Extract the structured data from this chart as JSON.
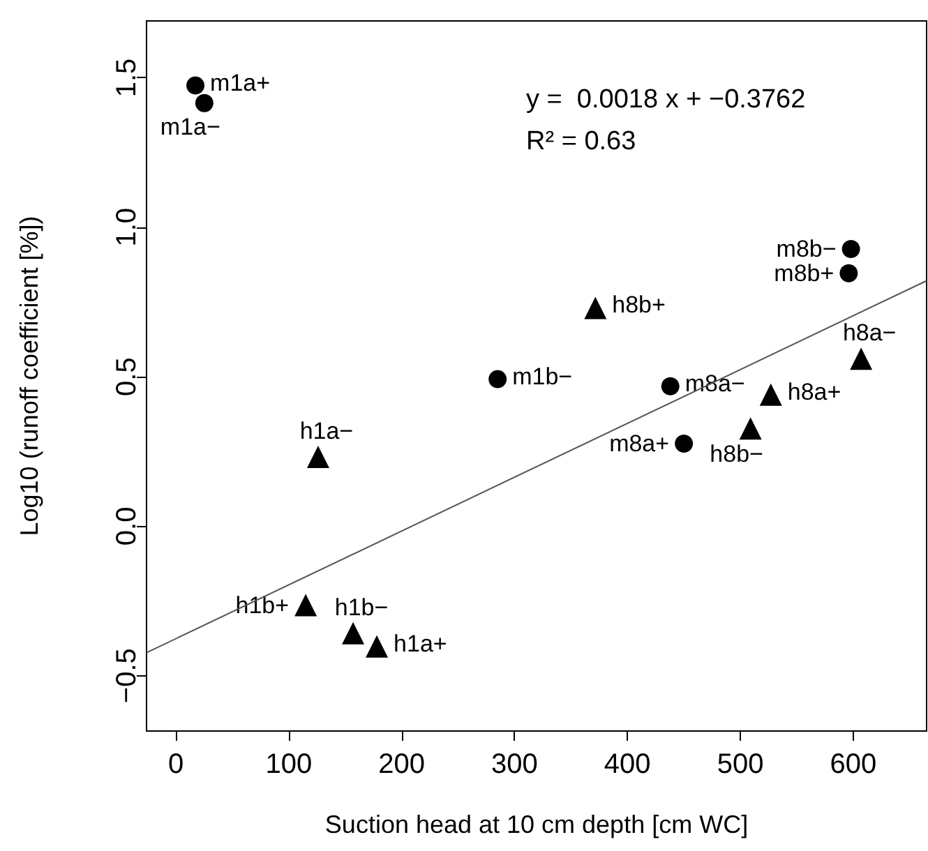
{
  "chart_data": {
    "type": "scatter",
    "xlabel": "Suction head at 10 cm depth [cm WC]",
    "ylabel": "Log10 (runoff coefficient [%])",
    "xlim": [
      -26,
      665
    ],
    "xticks": [
      0,
      100,
      200,
      300,
      400,
      500,
      600
    ],
    "ylim": [
      -0.685,
      1.69
    ],
    "yticks": [
      {
        "value": -0.5,
        "label": "−0.5"
      },
      {
        "value": 0,
        "label": "0.0"
      },
      0.5,
      {
        "value": 1,
        "label": "1.0"
      },
      1.5
    ],
    "grid": false,
    "series": [
      {
        "marker": "circle",
        "color": "#000000",
        "x": [
          17.3,
          25.2,
          598,
          596,
          285,
          438,
          450
        ],
        "values": [
          1.474,
          1.415,
          0.927,
          0.846,
          0.492,
          0.468,
          0.276
        ]
      },
      {
        "marker": "triangle",
        "color": "#000000",
        "x": [
          371.6,
          607,
          527,
          509,
          126,
          115,
          157,
          178
        ],
        "values": [
          0.73,
          0.56,
          0.44,
          0.327,
          0.232,
          -0.264,
          -0.358,
          -0.402
        ]
      },
      {
        "type": "line",
        "marker": "none",
        "color": "#555555",
        "x": [
          -26,
          665
        ],
        "values": [
          -0.423,
          0.821
        ]
      }
    ],
    "annotations": [
      {
        "text": "m1a+",
        "x": 17.3,
        "y": 1.474
      },
      {
        "text": "m1a−",
        "x": 25.2,
        "y": 1.415
      },
      {
        "text": "m8b−",
        "x": 598,
        "y": 0.927
      },
      {
        "text": "m8b+",
        "x": 596,
        "y": 0.846
      },
      {
        "text": "m1b−",
        "x": 285,
        "y": 0.492
      },
      {
        "text": "m8a−",
        "x": 438,
        "y": 0.468
      },
      {
        "text": "m8a+",
        "x": 450,
        "y": 0.276
      },
      {
        "text": "h8b+",
        "x": 371.6,
        "y": 0.73
      },
      {
        "text": "h8a−",
        "x": 607,
        "y": 0.56
      },
      {
        "text": "h8a+",
        "x": 527,
        "y": 0.44
      },
      {
        "text": "h8b−",
        "x": 509,
        "y": 0.327
      },
      {
        "text": "h1a−",
        "x": 126,
        "y": 0.232
      },
      {
        "text": "h1b+",
        "x": 115,
        "y": -0.264
      },
      {
        "text": "h1b−",
        "x": 157,
        "y": -0.358
      },
      {
        "text": "h1a+",
        "x": 178,
        "y": -0.402
      },
      "y =  0.0018 x + −0.3762",
      "R² = 0.63"
    ]
  }
}
